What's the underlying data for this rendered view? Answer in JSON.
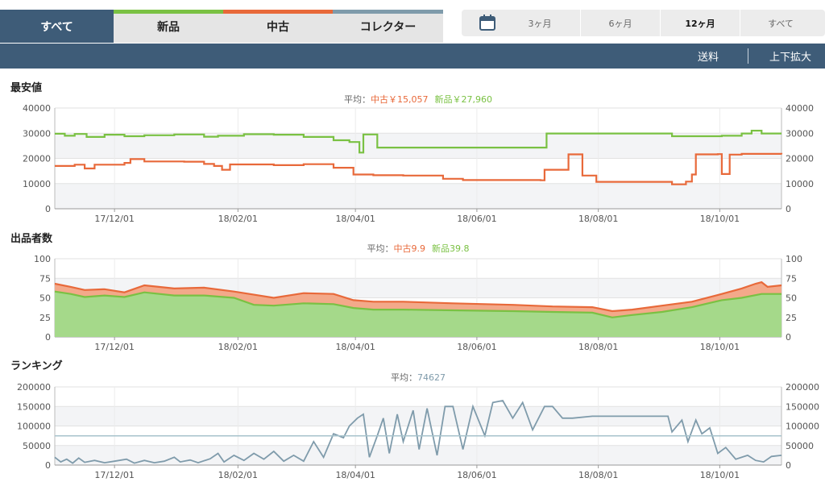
{
  "tabs": [
    {
      "label": "すべて",
      "accent": "#3e5c78"
    },
    {
      "label": "新品",
      "accent": "#7ac143"
    },
    {
      "label": "中古",
      "accent": "#e8693a"
    },
    {
      "label": "コレクター",
      "accent": "#7f9bab"
    }
  ],
  "range_options": [
    "3ヶ月",
    "6ヶ月",
    "12ヶ月",
    "すべて"
  ],
  "range_selected": "12ヶ月",
  "toolbar": {
    "shipping": "送料",
    "zoom": "上下拡大"
  },
  "colors": {
    "new": "#7ac143",
    "used": "#e8693a",
    "rank": "#7f9bab",
    "header": "#3e5c78"
  },
  "chart_data": [
    {
      "type": "line",
      "title": "最安値",
      "avg_prefix": "平均：",
      "avg_parts": [
        {
          "text": "中古￥15,057",
          "series": "used"
        },
        {
          "text": "新品￥27,960",
          "series": "new"
        }
      ],
      "x_ticks": [
        "17/12/01",
        "18/02/01",
        "18/04/01",
        "18/06/01",
        "18/08/01",
        "18/10/01"
      ],
      "x_tick_days": [
        30,
        92,
        151,
        212,
        273,
        334
      ],
      "x_range_days": [
        0,
        365
      ],
      "ylim": [
        0,
        40000
      ],
      "y_ticks": [
        "0",
        "10000",
        "20000",
        "30000",
        "40000"
      ],
      "y_tick_values": [
        0,
        10000,
        20000,
        30000,
        40000
      ],
      "grid": true,
      "series": [
        {
          "id": "new",
          "color": "#7ac143",
          "points": [
            [
              0,
              29800
            ],
            [
              5,
              29000
            ],
            [
              10,
              29700
            ],
            [
              16,
              28500
            ],
            [
              25,
              29400
            ],
            [
              35,
              28800
            ],
            [
              45,
              29200
            ],
            [
              60,
              29500
            ],
            [
              75,
              28600
            ],
            [
              82,
              29000
            ],
            [
              95,
              29600
            ],
            [
              110,
              29400
            ],
            [
              125,
              28500
            ],
            [
              140,
              27200
            ],
            [
              148,
              26500
            ],
            [
              153,
              22300
            ],
            [
              155,
              29500
            ],
            [
              160,
              29500
            ],
            [
              162,
              24300
            ],
            [
              200,
              24300
            ],
            [
              230,
              24300
            ],
            [
              245,
              24300
            ],
            [
              247,
              29900
            ],
            [
              290,
              29900
            ],
            [
              308,
              29900
            ],
            [
              310,
              28800
            ],
            [
              335,
              29000
            ],
            [
              345,
              29900
            ],
            [
              350,
              31000
            ],
            [
              355,
              29900
            ],
            [
              365,
              29900
            ]
          ]
        },
        {
          "id": "used",
          "color": "#e8693a",
          "points": [
            [
              0,
              17000
            ],
            [
              10,
              17500
            ],
            [
              15,
              16000
            ],
            [
              20,
              17500
            ],
            [
              35,
              18200
            ],
            [
              38,
              19700
            ],
            [
              45,
              18800
            ],
            [
              65,
              18700
            ],
            [
              75,
              17800
            ],
            [
              80,
              17000
            ],
            [
              84,
              15500
            ],
            [
              88,
              17600
            ],
            [
              110,
              17300
            ],
            [
              125,
              17700
            ],
            [
              140,
              16300
            ],
            [
              150,
              13600
            ],
            [
              160,
              13300
            ],
            [
              175,
              13200
            ],
            [
              195,
              11900
            ],
            [
              205,
              11400
            ],
            [
              225,
              11400
            ],
            [
              244,
              11300
            ],
            [
              246,
              15500
            ],
            [
              255,
              15500
            ],
            [
              258,
              21600
            ],
            [
              263,
              21600
            ],
            [
              265,
              13200
            ],
            [
              272,
              10700
            ],
            [
              290,
              10700
            ],
            [
              300,
              10700
            ],
            [
              310,
              9700
            ],
            [
              317,
              10800
            ],
            [
              320,
              13600
            ],
            [
              322,
              21600
            ],
            [
              333,
              21700
            ],
            [
              335,
              13800
            ],
            [
              339,
              21500
            ],
            [
              345,
              21800
            ],
            [
              365,
              21600
            ]
          ]
        }
      ]
    },
    {
      "type": "area",
      "title": "出品者数",
      "avg_prefix": "平均：",
      "avg_parts": [
        {
          "text": "中古9.9",
          "series": "used"
        },
        {
          "text": "新品39.8",
          "series": "new"
        }
      ],
      "x_ticks": [
        "17/12/01",
        "18/02/01",
        "18/04/01",
        "18/06/01",
        "18/08/01",
        "18/10/01"
      ],
      "x_tick_days": [
        30,
        92,
        151,
        212,
        273,
        334
      ],
      "x_range_days": [
        0,
        365
      ],
      "ylim": [
        0,
        100
      ],
      "y_ticks": [
        "0",
        "25",
        "50",
        "75",
        "100"
      ],
      "y_tick_values": [
        0,
        25,
        50,
        75,
        100
      ],
      "grid": true,
      "series": [
        {
          "id": "total",
          "color": "#e8693a",
          "points": [
            [
              0,
              68
            ],
            [
              8,
              64
            ],
            [
              15,
              60
            ],
            [
              25,
              61
            ],
            [
              35,
              57
            ],
            [
              45,
              66
            ],
            [
              60,
              62
            ],
            [
              75,
              63
            ],
            [
              90,
              58
            ],
            [
              100,
              54
            ],
            [
              110,
              50
            ],
            [
              125,
              56
            ],
            [
              140,
              55
            ],
            [
              150,
              47
            ],
            [
              160,
              45
            ],
            [
              175,
              45
            ],
            [
              200,
              43
            ],
            [
              230,
              41
            ],
            [
              250,
              39
            ],
            [
              270,
              38
            ],
            [
              280,
              33
            ],
            [
              290,
              35
            ],
            [
              305,
              40
            ],
            [
              320,
              45
            ],
            [
              335,
              55
            ],
            [
              345,
              62
            ],
            [
              352,
              68
            ],
            [
              355,
              70
            ],
            [
              358,
              64
            ],
            [
              365,
              66
            ]
          ]
        },
        {
          "id": "new",
          "color": "#7ac143",
          "points": [
            [
              0,
              58
            ],
            [
              8,
              55
            ],
            [
              15,
              51
            ],
            [
              25,
              53
            ],
            [
              35,
              51
            ],
            [
              45,
              57
            ],
            [
              60,
              53
            ],
            [
              75,
              53
            ],
            [
              90,
              50
            ],
            [
              100,
              41
            ],
            [
              110,
              40
            ],
            [
              125,
              43
            ],
            [
              140,
              42
            ],
            [
              150,
              37
            ],
            [
              160,
              35
            ],
            [
              175,
              35
            ],
            [
              200,
              34
            ],
            [
              230,
              33
            ],
            [
              250,
              32
            ],
            [
              270,
              31
            ],
            [
              280,
              25
            ],
            [
              290,
              28
            ],
            [
              305,
              32
            ],
            [
              320,
              38
            ],
            [
              335,
              47
            ],
            [
              345,
              50
            ],
            [
              355,
              55
            ],
            [
              365,
              55
            ]
          ]
        }
      ]
    },
    {
      "type": "line",
      "title": "ランキング",
      "avg_prefix": "平均：",
      "avg_parts": [
        {
          "text": "74627",
          "series": "rank"
        }
      ],
      "avg_value": 74627,
      "x_ticks": [
        "17/12/01",
        "18/02/01",
        "18/04/01",
        "18/06/01",
        "18/08/01",
        "18/10/01"
      ],
      "x_tick_days": [
        30,
        92,
        151,
        212,
        273,
        334
      ],
      "x_range_days": [
        0,
        365
      ],
      "ylim": [
        0,
        200000
      ],
      "y_ticks": [
        "0",
        "50000",
        "100000",
        "150000",
        "200000"
      ],
      "y_tick_values": [
        0,
        50000,
        100000,
        150000,
        200000
      ],
      "grid": true,
      "series": [
        {
          "id": "rank",
          "color": "#7f9bab",
          "points": [
            [
              0,
              20000
            ],
            [
              3,
              8000
            ],
            [
              6,
              15000
            ],
            [
              9,
              5000
            ],
            [
              12,
              18000
            ],
            [
              15,
              7000
            ],
            [
              20,
              12000
            ],
            [
              25,
              6000
            ],
            [
              30,
              10000
            ],
            [
              36,
              15000
            ],
            [
              40,
              5000
            ],
            [
              45,
              12000
            ],
            [
              50,
              6000
            ],
            [
              55,
              10000
            ],
            [
              60,
              20000
            ],
            [
              63,
              8000
            ],
            [
              68,
              13000
            ],
            [
              72,
              6000
            ],
            [
              78,
              16000
            ],
            [
              82,
              30000
            ],
            [
              85,
              8000
            ],
            [
              90,
              25000
            ],
            [
              95,
              12000
            ],
            [
              100,
              30000
            ],
            [
              105,
              15000
            ],
            [
              110,
              35000
            ],
            [
              115,
              10000
            ],
            [
              120,
              25000
            ],
            [
              125,
              10000
            ],
            [
              130,
              60000
            ],
            [
              135,
              20000
            ],
            [
              140,
              80000
            ],
            [
              145,
              70000
            ],
            [
              148,
              100000
            ],
            [
              152,
              120000
            ],
            [
              155,
              130000
            ],
            [
              158,
              20000
            ],
            [
              162,
              75000
            ],
            [
              165,
              120000
            ],
            [
              168,
              30000
            ],
            [
              172,
              130000
            ],
            [
              175,
              60000
            ],
            [
              180,
              140000
            ],
            [
              183,
              40000
            ],
            [
              187,
              145000
            ],
            [
              192,
              25000
            ],
            [
              196,
              150000
            ],
            [
              200,
              150000
            ],
            [
              205,
              40000
            ],
            [
              210,
              150000
            ],
            [
              216,
              75000
            ],
            [
              220,
              160000
            ],
            [
              225,
              165000
            ],
            [
              230,
              120000
            ],
            [
              235,
              160000
            ],
            [
              240,
              90000
            ],
            [
              246,
              150000
            ],
            [
              250,
              150000
            ],
            [
              255,
              120000
            ],
            [
              260,
              120000
            ],
            [
              270,
              125000
            ],
            [
              290,
              125000
            ],
            [
              300,
              125000
            ],
            [
              308,
              125000
            ],
            [
              310,
              85000
            ],
            [
              315,
              115000
            ],
            [
              318,
              60000
            ],
            [
              322,
              115000
            ],
            [
              325,
              80000
            ],
            [
              329,
              95000
            ],
            [
              333,
              30000
            ],
            [
              337,
              45000
            ],
            [
              342,
              15000
            ],
            [
              348,
              25000
            ],
            [
              352,
              12000
            ],
            [
              356,
              8000
            ],
            [
              360,
              22000
            ],
            [
              365,
              25000
            ]
          ]
        }
      ]
    }
  ]
}
